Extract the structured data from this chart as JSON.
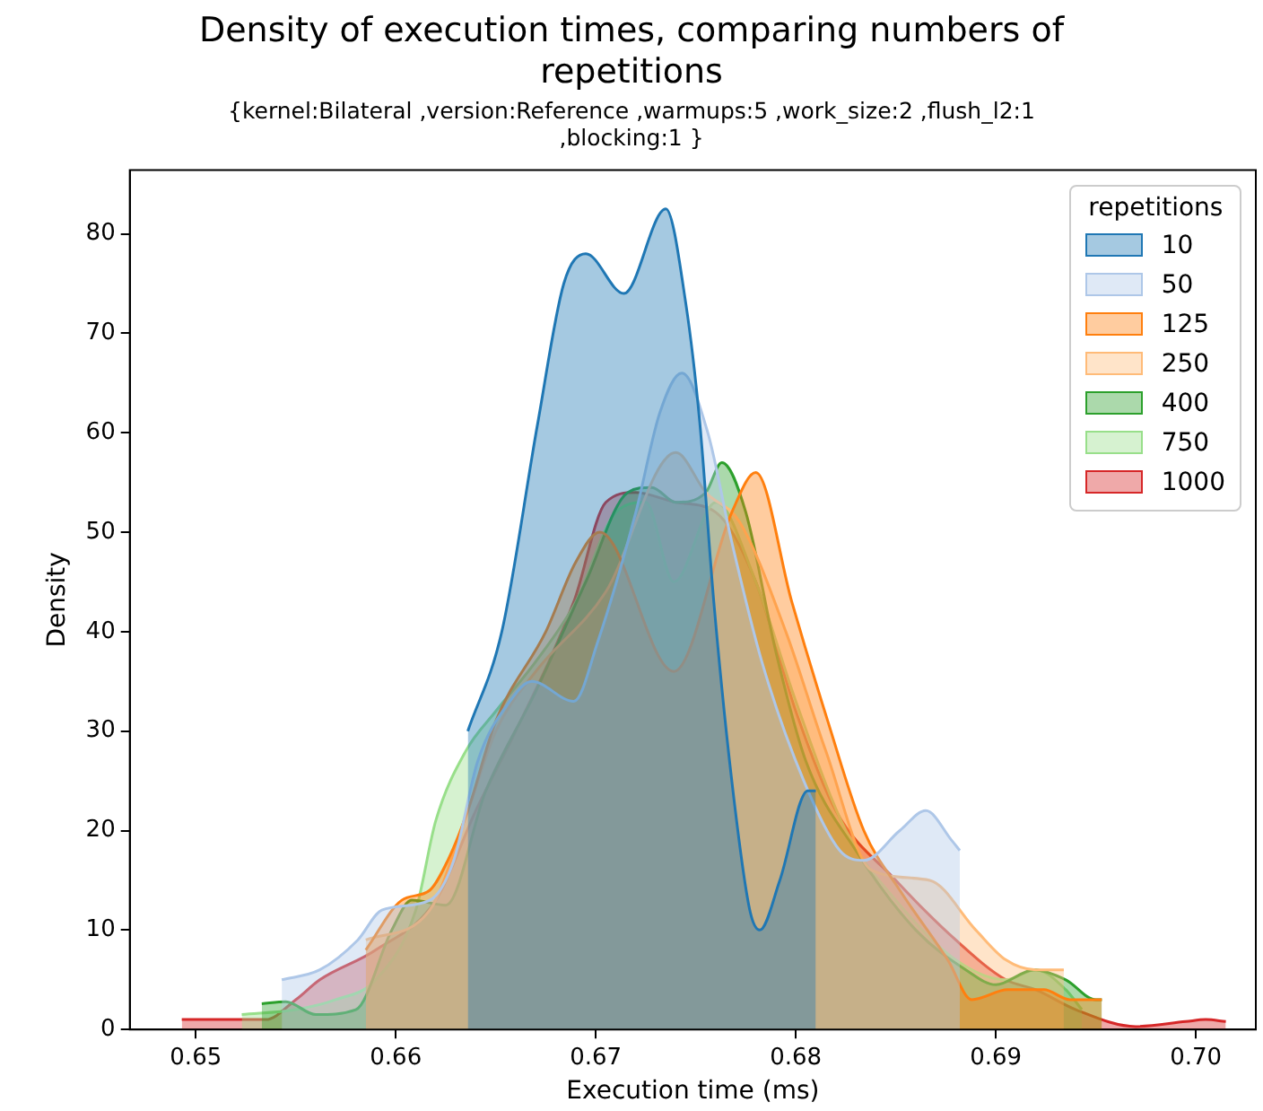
{
  "chart_data": {
    "type": "area",
    "title": "Density of execution times, comparing numbers of repetitions",
    "subtitle": "{kernel:Bilateral ,version:Reference ,warmups:5 ,work_size:2 ,flush_l2:1 ,blocking:1 }",
    "xlabel": "Execution time (ms)",
    "ylabel": "Density",
    "legend_title": "repetitions",
    "legend": "top right",
    "grid": false,
    "xlim": [
      0.6467,
      0.703
    ],
    "ylim": [
      0,
      86.4
    ],
    "xticks": [
      {
        "value": 0.65,
        "label": "0.65"
      },
      {
        "value": 0.66,
        "label": "0.66"
      },
      {
        "value": 0.67,
        "label": "0.67"
      },
      {
        "value": 0.68,
        "label": "0.68"
      },
      {
        "value": 0.69,
        "label": "0.69"
      },
      {
        "value": 0.7,
        "label": "0.70"
      }
    ],
    "yticks": [
      0,
      10,
      20,
      30,
      40,
      50,
      60,
      70,
      80
    ],
    "series": [
      {
        "name": "10",
        "color": "#1f77b4",
        "x": [
          0.6636,
          0.6653,
          0.6671,
          0.6684,
          0.6695,
          0.6714,
          0.6735,
          0.6745,
          0.6752,
          0.6759,
          0.6768,
          0.6777,
          0.6782,
          0.6792,
          0.6806,
          0.681
        ],
        "values": [
          30,
          40,
          61,
          75,
          78,
          74,
          82.5,
          73,
          61,
          43,
          25,
          12,
          10,
          15,
          24,
          24
        ]
      },
      {
        "name": "50",
        "color": "#aec7e8",
        "x": [
          0.6543,
          0.6562,
          0.6581,
          0.6593,
          0.6617,
          0.6629,
          0.6641,
          0.6657,
          0.6668,
          0.6689,
          0.6701,
          0.672,
          0.6732,
          0.6743,
          0.6756,
          0.6768,
          0.6783,
          0.6804,
          0.6822,
          0.6834,
          0.6852,
          0.6865,
          0.6878,
          0.6882
        ],
        "values": [
          5,
          6,
          9,
          12,
          13,
          17,
          27,
          33,
          35,
          33,
          39,
          52,
          62,
          66,
          60,
          49,
          37,
          25,
          18,
          17,
          20,
          22,
          19,
          18
        ]
      },
      {
        "name": "125",
        "color": "#ff7f0e",
        "x": [
          0.6585,
          0.6603,
          0.6617,
          0.6626,
          0.6636,
          0.665,
          0.6675,
          0.669,
          0.6702,
          0.6739,
          0.6768,
          0.678,
          0.6798,
          0.6816,
          0.6834,
          0.6852,
          0.6876,
          0.6888,
          0.6906,
          0.6924,
          0.6937,
          0.6953
        ],
        "values": [
          8,
          13,
          14,
          17,
          22,
          31,
          40,
          47,
          50,
          36,
          52,
          56,
          43,
          31,
          20,
          14,
          7,
          3,
          4,
          4,
          3,
          3
        ]
      },
      {
        "name": "250",
        "color": "#ffbb78",
        "x": [
          0.6585,
          0.6617,
          0.6636,
          0.665,
          0.667,
          0.6705,
          0.674,
          0.6755,
          0.6772,
          0.6795,
          0.6815,
          0.6838,
          0.6867,
          0.689,
          0.6905,
          0.692,
          0.6934
        ],
        "values": [
          9,
          12,
          22,
          30,
          36,
          44,
          58,
          54,
          51,
          40,
          28,
          16,
          15,
          10,
          7,
          6,
          6
        ]
      },
      {
        "name": "400",
        "color": "#2ca02c",
        "x": [
          0.6533,
          0.6545,
          0.656,
          0.658,
          0.6598,
          0.6608,
          0.6625,
          0.6645,
          0.667,
          0.6695,
          0.6716,
          0.6728,
          0.674,
          0.6755,
          0.6763,
          0.6775,
          0.679,
          0.6805,
          0.683,
          0.686,
          0.6885,
          0.69,
          0.6919,
          0.6935,
          0.695,
          0.6953
        ],
        "values": [
          2.6,
          2.8,
          1.5,
          2,
          10,
          13,
          12.5,
          24,
          34,
          45,
          54,
          54.5,
          53,
          54,
          57,
          52,
          38,
          27,
          18,
          10,
          6,
          4.5,
          6,
          5,
          3,
          3
        ]
      },
      {
        "name": "750",
        "color": "#98df8a",
        "x": [
          0.6523,
          0.655,
          0.657,
          0.659,
          0.661,
          0.662,
          0.6635,
          0.665,
          0.667,
          0.669,
          0.671,
          0.6725,
          0.6739,
          0.676,
          0.678,
          0.68,
          0.6825,
          0.685,
          0.688,
          0.6905,
          0.692,
          0.6935,
          0.6943
        ],
        "values": [
          1.5,
          2,
          3,
          5,
          12,
          21,
          28,
          32,
          37,
          43,
          52,
          53,
          45,
          53,
          45,
          33,
          20,
          13,
          7,
          5,
          6,
          4,
          2
        ]
      },
      {
        "name": "1000",
        "color": "#d62728",
        "x": [
          0.6493,
          0.6535,
          0.655,
          0.6562,
          0.659,
          0.662,
          0.664,
          0.666,
          0.6689,
          0.6705,
          0.672,
          0.674,
          0.676,
          0.678,
          0.68,
          0.682,
          0.685,
          0.688,
          0.6905,
          0.692,
          0.694,
          0.697,
          0.6995,
          0.7005,
          0.7015
        ],
        "values": [
          1,
          1,
          3,
          5,
          8,
          13,
          22,
          30,
          43,
          53,
          54,
          53,
          52,
          45,
          32,
          22,
          15,
          9,
          5,
          4,
          2,
          0.3,
          0.8,
          1,
          0.8
        ]
      }
    ]
  }
}
